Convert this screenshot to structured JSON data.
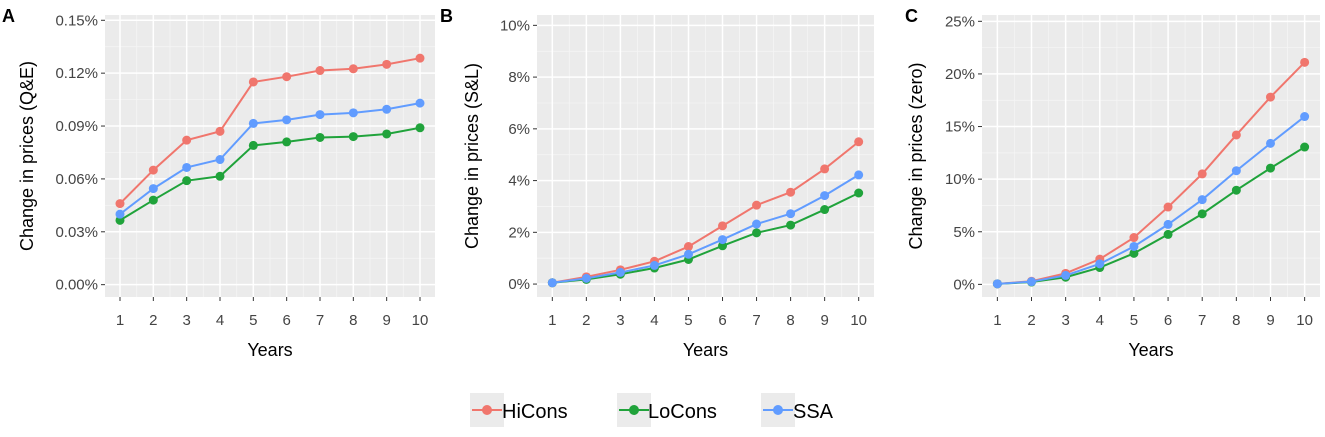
{
  "figure": {
    "legend": {
      "items": [
        {
          "name": "HiCons",
          "color": "#F0766D"
        },
        {
          "name": "LoCons",
          "color": "#20A33B"
        },
        {
          "name": "SSA",
          "color": "#619CFF"
        }
      ]
    }
  },
  "chart_data": [
    {
      "type": "line",
      "panel_label": "A",
      "title": "",
      "xlabel": "Years",
      "ylabel": "Change in prices (Q&E)",
      "x": [
        1,
        2,
        3,
        4,
        5,
        6,
        7,
        8,
        9,
        10
      ],
      "xlim": [
        0.55,
        10.45
      ],
      "ylim": [
        -0.007,
        0.153
      ],
      "yticks": [
        0.0,
        0.03,
        0.06,
        0.09,
        0.12,
        0.15
      ],
      "ytick_labels": [
        "0.00%",
        "0.03%",
        "0.06%",
        "0.09%",
        "0.12%",
        "0.15%"
      ],
      "series": [
        {
          "name": "HiCons",
          "color": "#F0766D",
          "values": [
            0.046,
            0.065,
            0.082,
            0.087,
            0.115,
            0.118,
            0.1215,
            0.1225,
            0.125,
            0.1285
          ]
        },
        {
          "name": "LoCons",
          "color": "#20A33B",
          "values": [
            0.0365,
            0.048,
            0.059,
            0.0615,
            0.079,
            0.081,
            0.0835,
            0.084,
            0.0855,
            0.089
          ]
        },
        {
          "name": "SSA",
          "color": "#619CFF",
          "values": [
            0.04,
            0.0545,
            0.0665,
            0.071,
            0.0915,
            0.0935,
            0.0965,
            0.0975,
            0.0995,
            0.103
          ]
        }
      ]
    },
    {
      "type": "line",
      "panel_label": "B",
      "title": "",
      "xlabel": "Years",
      "ylabel": "Change in prices (S&L)",
      "x": [
        1,
        2,
        3,
        4,
        5,
        6,
        7,
        8,
        9,
        10
      ],
      "xlim": [
        0.55,
        10.45
      ],
      "ylim": [
        -0.5,
        10.4
      ],
      "yticks": [
        0,
        2,
        4,
        6,
        8,
        10
      ],
      "ytick_labels": [
        "0%",
        "2%",
        "4%",
        "6%",
        "8%",
        "10%"
      ],
      "series": [
        {
          "name": "HiCons",
          "color": "#F0766D",
          "values": [
            0.05,
            0.28,
            0.55,
            0.88,
            1.45,
            2.25,
            3.05,
            3.55,
            4.45,
            5.5
          ]
        },
        {
          "name": "LoCons",
          "color": "#20A33B",
          "values": [
            0.05,
            0.18,
            0.38,
            0.62,
            0.95,
            1.48,
            1.98,
            2.28,
            2.88,
            3.52
          ]
        },
        {
          "name": "SSA",
          "color": "#619CFF",
          "values": [
            0.05,
            0.22,
            0.45,
            0.72,
            1.15,
            1.72,
            2.32,
            2.72,
            3.42,
            4.22
          ]
        }
      ]
    },
    {
      "type": "line",
      "panel_label": "C",
      "title": "",
      "xlabel": "Years",
      "ylabel": "Change in prices (zero)",
      "x": [
        1,
        2,
        3,
        4,
        5,
        6,
        7,
        8,
        9,
        10
      ],
      "xlim": [
        0.55,
        10.45
      ],
      "ylim": [
        -1.2,
        25.6
      ],
      "yticks": [
        0,
        5,
        10,
        15,
        20,
        25
      ],
      "ytick_labels": [
        "0%",
        "5%",
        "10%",
        "15%",
        "20%",
        "25%"
      ],
      "series": [
        {
          "name": "HiCons",
          "color": "#F0766D",
          "values": [
            0.05,
            0.3,
            1.05,
            2.4,
            4.45,
            7.35,
            10.5,
            14.2,
            17.8,
            21.1
          ]
        },
        {
          "name": "LoCons",
          "color": "#20A33B",
          "values": [
            0.05,
            0.22,
            0.68,
            1.6,
            2.95,
            4.75,
            6.7,
            8.95,
            11.05,
            13.05
          ]
        },
        {
          "name": "SSA",
          "color": "#619CFF",
          "values": [
            0.05,
            0.26,
            0.85,
            1.95,
            3.6,
            5.7,
            8.05,
            10.8,
            13.4,
            15.95
          ]
        }
      ]
    }
  ]
}
